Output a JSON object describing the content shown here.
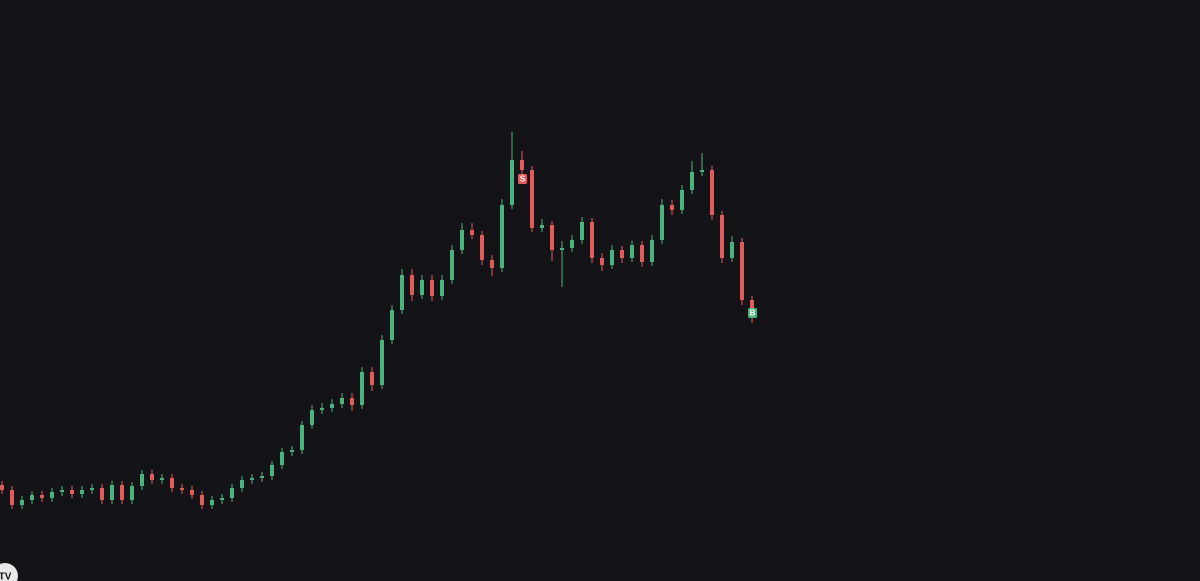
{
  "chart_data": {
    "type": "candlestick",
    "up_color": "#4bb37d",
    "down_color": "#e05c5c",
    "ylim": [
      0,
      581
    ],
    "open": [
      96,
      91,
      76,
      81,
      86,
      83,
      89,
      91,
      87,
      91,
      93,
      81,
      96,
      81,
      95,
      107,
      101,
      103,
      93,
      91,
      86,
      76,
      81,
      83,
      93,
      101,
      103,
      105,
      116,
      129,
      131,
      156,
      171,
      173,
      177,
      183,
      176,
      209,
      196,
      241,
      271,
      306,
      286,
      301,
      285,
      301,
      331,
      351,
      346,
      321,
      313,
      376,
      421,
      411,
      353,
      356,
      331,
      333,
      341,
      359,
      323,
      316,
      331,
      323,
      336,
      319,
      341,
      376,
      371,
      391,
      409,
      411,
      366,
      323,
      339,
      281
    ],
    "high": [
      100,
      95,
      85,
      90,
      90,
      93,
      95,
      95,
      95,
      97,
      97,
      100,
      100,
      99,
      111,
      111,
      107,
      107,
      97,
      95,
      90,
      85,
      87,
      97,
      105,
      107,
      109,
      120,
      133,
      135,
      160,
      176,
      178,
      182,
      188,
      188,
      214,
      214,
      246,
      276,
      312,
      312,
      306,
      306,
      306,
      336,
      358,
      358,
      350,
      326,
      382,
      449,
      430,
      415,
      362,
      360,
      340,
      346,
      364,
      363,
      328,
      336,
      335,
      340,
      340,
      346,
      382,
      381,
      396,
      420,
      428,
      415,
      370,
      345,
      343,
      285
    ],
    "low": [
      87,
      72,
      72,
      77,
      79,
      79,
      85,
      83,
      83,
      87,
      77,
      77,
      77,
      77,
      91,
      97,
      97,
      89,
      87,
      82,
      72,
      72,
      77,
      79,
      89,
      97,
      99,
      101,
      112,
      125,
      127,
      152,
      167,
      169,
      173,
      170,
      172,
      190,
      192,
      237,
      267,
      280,
      282,
      280,
      281,
      297,
      327,
      342,
      316,
      305,
      309,
      372,
      405,
      349,
      349,
      320,
      294,
      329,
      337,
      318,
      310,
      312,
      318,
      319,
      314,
      315,
      337,
      366,
      367,
      387,
      405,
      361,
      318,
      319,
      276,
      258
    ],
    "close": [
      91,
      76,
      81,
      86,
      83,
      89,
      91,
      87,
      91,
      93,
      81,
      96,
      81,
      95,
      107,
      101,
      103,
      93,
      91,
      86,
      76,
      81,
      83,
      93,
      101,
      103,
      105,
      116,
      129,
      131,
      156,
      171,
      173,
      177,
      183,
      176,
      209,
      196,
      241,
      271,
      306,
      286,
      301,
      285,
      301,
      331,
      351,
      346,
      321,
      313,
      376,
      421,
      411,
      353,
      356,
      331,
      333,
      341,
      359,
      323,
      316,
      331,
      323,
      336,
      319,
      341,
      376,
      371,
      391,
      409,
      411,
      366,
      323,
      339,
      281,
      263
    ],
    "signals": [
      {
        "label": "S",
        "candle": 52,
        "color": "#e05c5c"
      },
      {
        "label": "B",
        "candle": 75,
        "color": "#4bb37d"
      }
    ],
    "watermark": "TV"
  }
}
